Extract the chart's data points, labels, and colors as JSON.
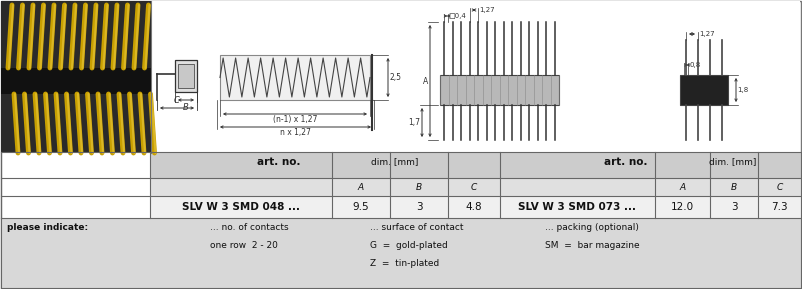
{
  "bg_color": "#ffffff",
  "table_header1": "art. no.",
  "table_header2": "dim. [mm]",
  "sub_headers": [
    "A",
    "B",
    "C"
  ],
  "row1_artno": "SLV W 3 SMD 048 ...",
  "row1_vals": [
    "9.5",
    "3",
    "4.8"
  ],
  "row2_artno": "SLV W 3 SMD 073 ...",
  "row2_vals": [
    "12.0",
    "3",
    "7.3"
  ],
  "please_indicate_text": [
    [
      "please indicate:",
      "... no. of contacts",
      "... surface of contact",
      "... packing (optional)"
    ],
    [
      "",
      "one row  2 - 20",
      "G  =  gold-plated",
      "SM  =  bar magazine"
    ],
    [
      "",
      "",
      "Z  =  tin-plated",
      ""
    ]
  ],
  "pin_label_left": "(n-1) x 1,27",
  "pin_label_right": "n x 1,27",
  "label_C": "C",
  "label_B": "B",
  "label_A": "A",
  "photo_bg": "#1c1c1c",
  "photo_body": "#222222",
  "pin_gold1": "#c8a000",
  "pin_gold2": "#e8c840",
  "draw_color": "#333333",
  "grid_color": "#888888",
  "header_bg1": "#d0d0d0",
  "header_bg2": "#e8e8e8",
  "data_row_bg": "#f0f0f0",
  "note_row_bg": "#d8d8d8"
}
